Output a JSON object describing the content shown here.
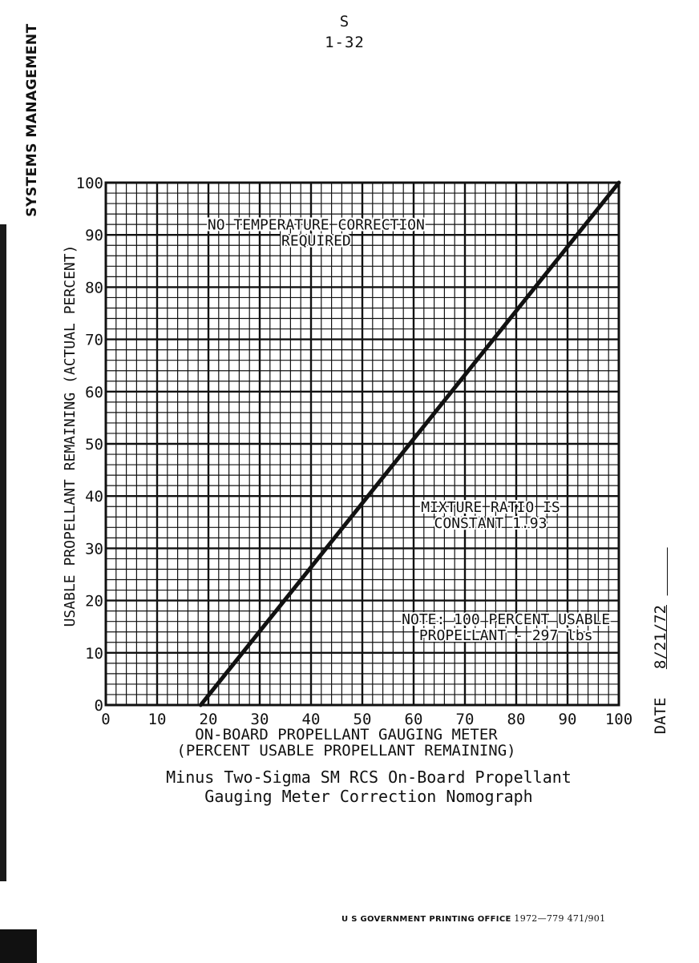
{
  "page": {
    "marker": "S",
    "number": "1-32",
    "section_title": "SYSTEMS MANAGEMENT",
    "date_label": "DATE",
    "date_value": "8/21/72",
    "caption_line1": "Minus Two-Sigma SM RCS On-Board Propellant",
    "caption_line2": "Gauging Meter Correction Nomograph",
    "footer_text": "U S  GOVERNMENT PRINTING OFFICE",
    "footer_code": "1972—779 471/901"
  },
  "chart_data": {
    "type": "line",
    "title": "",
    "xlabel_line1": "ON-BOARD PROPELLANT GAUGING METER",
    "xlabel_line2": "(PERCENT USABLE PROPELLANT REMAINING)",
    "ylabel": "USABLE PROPELLANT REMAINING (ACTUAL PERCENT)",
    "xlim": [
      0,
      100
    ],
    "ylim": [
      0,
      100
    ],
    "xticks": [
      0,
      10,
      20,
      30,
      40,
      50,
      60,
      70,
      80,
      90,
      100
    ],
    "yticks": [
      0,
      10,
      20,
      30,
      40,
      50,
      60,
      70,
      80,
      90,
      100
    ],
    "grid": true,
    "grid_major_step": 10,
    "grid_minor_step": 2,
    "series": [
      {
        "x": [
          18.5,
          100
        ],
        "y": [
          0,
          100
        ]
      }
    ],
    "annotations": [
      {
        "lines": [
          "NO TEMPERATURE CORRECTION",
          "REQUIRED"
        ],
        "anchor_x": 41,
        "anchor_y": 91
      },
      {
        "lines": [
          "MIXTURE RATIO IS",
          "CONSTANT 1.93"
        ],
        "anchor_x": 75,
        "anchor_y": 37
      },
      {
        "lines": [
          "NOTE:  100 PERCENT USABLE",
          "PROPELLANT - 297 lbs"
        ],
        "anchor_x": 78,
        "anchor_y": 15.5
      }
    ]
  },
  "colors": {
    "ink": "#111111",
    "paper": "#ffffff"
  }
}
